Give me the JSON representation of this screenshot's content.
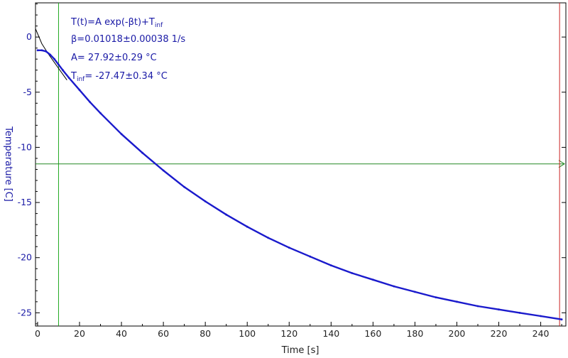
{
  "chart_data": {
    "type": "line",
    "xlabel": "Time [s]",
    "ylabel": "Temperature [C]",
    "xlim": [
      -1,
      252
    ],
    "ylim": [
      -26.2,
      3.1
    ],
    "x_ticks": [
      0,
      20,
      40,
      60,
      80,
      100,
      120,
      140,
      160,
      180,
      200,
      220,
      240
    ],
    "y_ticks": [
      0,
      -5,
      -10,
      -15,
      -20,
      -25
    ],
    "grid": false,
    "series": [
      {
        "color": "#1a1acc",
        "x": [
          0,
          2,
          4,
          6,
          8,
          10,
          12,
          15,
          20,
          25,
          30,
          40,
          50,
          60,
          70,
          80,
          90,
          100,
          110,
          120,
          130,
          140,
          150,
          160,
          170,
          180,
          190,
          200,
          210,
          220,
          230,
          240,
          250
        ],
        "y": [
          -1.2,
          -1.2,
          -1.3,
          -1.6,
          -2.0,
          -2.5,
          -3.0,
          -3.7,
          -4.8,
          -5.9,
          -6.9,
          -8.8,
          -10.5,
          -12.1,
          -13.6,
          -14.9,
          -16.1,
          -17.2,
          -18.2,
          -19.1,
          -19.9,
          -20.7,
          -21.4,
          -22.0,
          -22.6,
          -23.1,
          -23.6,
          -24.0,
          -24.4,
          -24.7,
          -25.0,
          -25.3,
          -25.6
        ]
      }
    ],
    "fit_line": {
      "color": "#000000",
      "x": [
        -1,
        2,
        5,
        8,
        11,
        14
      ],
      "y": [
        0.75,
        -0.6,
        -1.5,
        -2.3,
        -3.1,
        -3.9
      ]
    },
    "cursors": {
      "vertical_green_x": 10,
      "horizontal_green_y": -11.5,
      "vertical_red_x": 249,
      "green_color": "#22aa22",
      "red_color": "#cc2222"
    },
    "annotation": {
      "formula_main": "T(t)=A exp(-βt)+T",
      "formula_sub": "inf",
      "beta": "β=0.01018±0.00038 1/s",
      "amplitude": "A= 27.92±0.29 °C",
      "tinf_main": "T",
      "tinf_sub": "inf",
      "tinf_value": "= -27.47±0.34 °C"
    }
  }
}
